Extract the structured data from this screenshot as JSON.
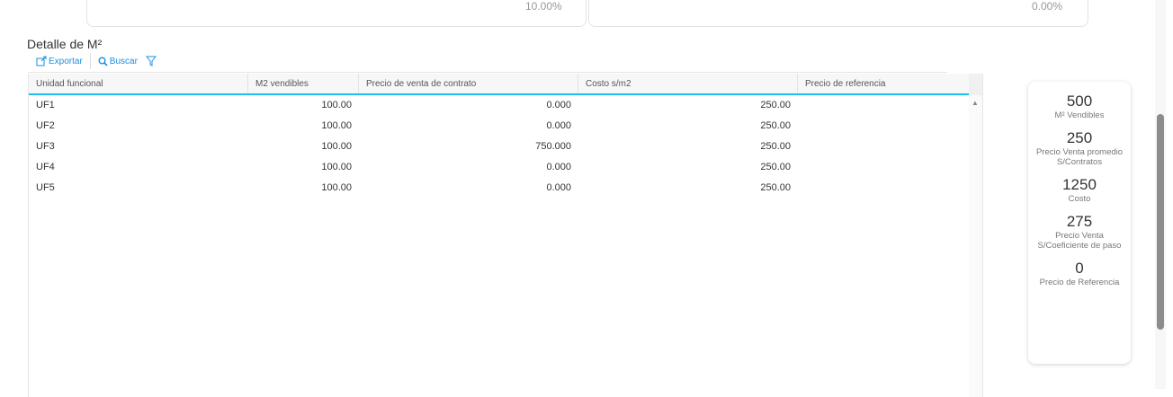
{
  "top_cards": [
    {
      "value": "10.00%"
    },
    {
      "value": "0.00%"
    }
  ],
  "section": {
    "title": "Detalle de M²"
  },
  "toolbar": {
    "export_label": "Exportar",
    "search_label": "Buscar"
  },
  "table": {
    "columns": [
      "Unidad funcional",
      "M2 vendibles",
      "Precio de venta de contrato",
      "Costo s/m2",
      "Precio de referencia"
    ],
    "rows": [
      [
        "UF1",
        "100.00",
        "0.000",
        "250.00",
        ""
      ],
      [
        "UF2",
        "100.00",
        "0.000",
        "250.00",
        ""
      ],
      [
        "UF3",
        "100.00",
        "750.000",
        "250.00",
        ""
      ],
      [
        "UF4",
        "100.00",
        "0.000",
        "250.00",
        ""
      ],
      [
        "UF5",
        "100.00",
        "0.000",
        "250.00",
        ""
      ]
    ]
  },
  "summary": [
    {
      "value": "500",
      "label": "M² Vendibles"
    },
    {
      "value": "250",
      "label": "Precio Venta promedio S/Contratos"
    },
    {
      "value": "1250",
      "label": "Costo"
    },
    {
      "value": "275",
      "label": "Precio Venta S/Coeficiente de paso"
    },
    {
      "value": "0",
      "label": "Precio de Referencia"
    }
  ],
  "colors": {
    "accent": "#1a8fe0",
    "header_underline": "#1bc0f0"
  }
}
